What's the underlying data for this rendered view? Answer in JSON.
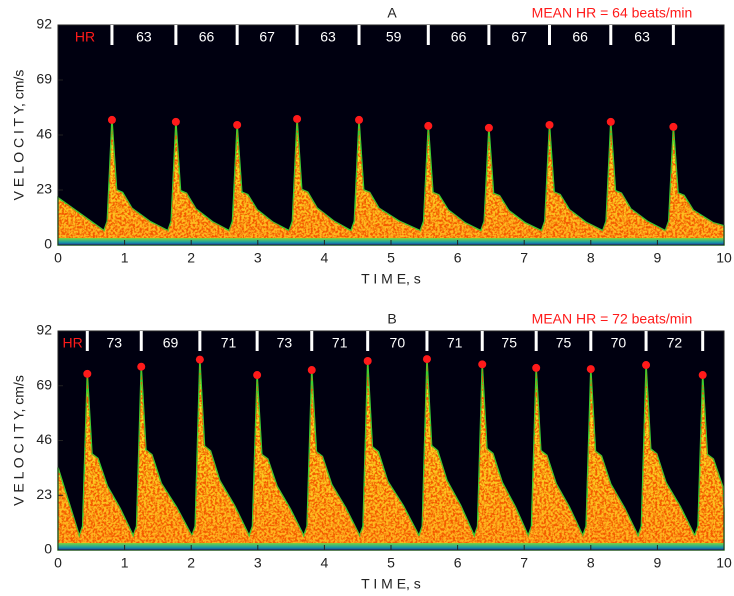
{
  "chart_data": [
    {
      "type": "doppler",
      "title": "A",
      "annotation": "MEAN HR = 64 beats/min",
      "hr_label": "HR",
      "hr_values": [
        63,
        66,
        67,
        63,
        59,
        66,
        67,
        66,
        63
      ],
      "xlabel": "T I M E, s",
      "ylabel": "V E L O C I T Y, cm/s",
      "xlim": [
        0,
        10
      ],
      "ylim": [
        0,
        92
      ],
      "xticks": [
        0,
        1,
        2,
        3,
        4,
        5,
        6,
        7,
        8,
        9,
        10
      ],
      "yticks": [
        0,
        23,
        46,
        69,
        92
      ],
      "peak_x": [
        0.81,
        1.77,
        2.69,
        3.59,
        4.52,
        5.56,
        6.47,
        7.38,
        8.3,
        9.24
      ],
      "peak_values": [
        52.3,
        51.5,
        50.2,
        52.7,
        52.3,
        49.8,
        49,
        50.2,
        51.5,
        49.4
      ],
      "peak_color": "#ff1a1a"
    },
    {
      "type": "doppler",
      "title": "B",
      "annotation": "MEAN HR = 72 beats/min",
      "hr_label": "HR",
      "hr_values": [
        73,
        69,
        71,
        73,
        71,
        70,
        71,
        75,
        75,
        70,
        72
      ],
      "xlabel": "T I M E, s",
      "ylabel": "V E L O C I T Y, cm/s",
      "xlim": [
        0,
        10
      ],
      "ylim": [
        0,
        92
      ],
      "xticks": [
        0,
        1,
        2,
        3,
        4,
        5,
        6,
        7,
        8,
        9,
        10
      ],
      "yticks": [
        0,
        23,
        46,
        69,
        92
      ],
      "peak_x": [
        0.44,
        1.25,
        2.13,
        2.99,
        3.81,
        4.65,
        5.54,
        6.37,
        7.18,
        8.0,
        8.83,
        9.68
      ],
      "peak_values": [
        74,
        77,
        80,
        73.5,
        75.6,
        79.4,
        80.2,
        78,
        76.5,
        76,
        77.7,
        73.5
      ],
      "peak_color": "#ff1a1a"
    }
  ]
}
